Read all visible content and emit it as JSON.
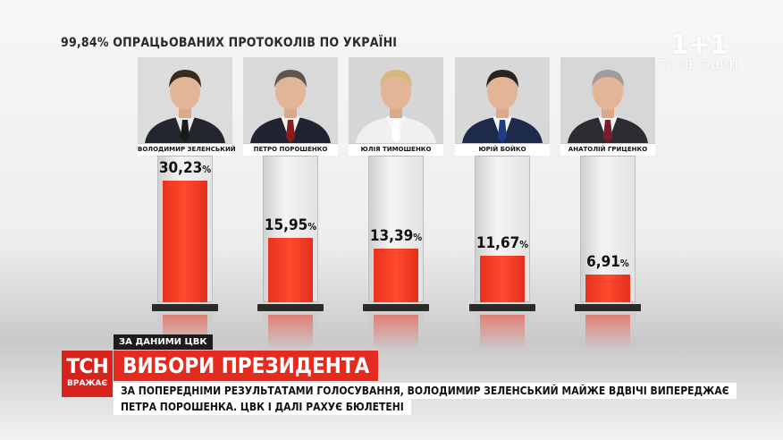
{
  "header": {
    "subtitle": "99,84% ОПРАЦЬОВАНИХ ПРОТОКОЛІВ ПО УКРАЇНІ"
  },
  "watermark": {
    "logo": "1+1",
    "tagline": "ТИ НЕ ОДИН"
  },
  "candidates": [
    {
      "name": "ВОЛОДИМИР ЗЕЛЕНСЬКИЙ",
      "value_label": "30,23",
      "pct": "%",
      "hair": "#3b2a1e",
      "tie": "#1a1a1a",
      "suit": "#23262c",
      "shirt": "#e9e9e9",
      "bg": "#dcdcdc"
    },
    {
      "name": "ПЕТРО ПОРОШЕНКО",
      "value_label": "15,95",
      "pct": "%",
      "hair": "#5c5550",
      "tie": "#8a1c1c",
      "suit": "#1f2430",
      "shirt": "#f2f2f2",
      "bg": "#d9d9d9"
    },
    {
      "name": "ЮЛІЯ ТИМОШЕНКО",
      "value_label": "13,39",
      "pct": "%",
      "hair": "#d9b77a",
      "tie": "#ffffff",
      "suit": "#f0f0f0",
      "shirt": "#f6f6f6",
      "bg": "#d6d6d6"
    },
    {
      "name": "ЮРІЙ БОЙКО",
      "value_label": "11,67",
      "pct": "%",
      "hair": "#2a2420",
      "tie": "#1f3c8a",
      "suit": "#1d2a4a",
      "shirt": "#f2f2f2",
      "bg": "#d8d8d8"
    },
    {
      "name": "АНАТОЛІЙ ГРИЦЕНКО",
      "value_label": "6,91",
      "pct": "%",
      "hair": "#9c9c9c",
      "tie": "#7b1e2b",
      "suit": "#2b2b30",
      "shirt": "#f3f3f3",
      "bg": "#d7d7d7"
    }
  ],
  "chart_data": {
    "type": "bar",
    "title": "",
    "subtitle": "99,84% ОПРАЦЬОВАНИХ ПРОТОКОЛІВ ПО УКРАЇНІ",
    "categories": [
      "ВОЛОДИМИР ЗЕЛЕНСЬКИЙ",
      "ПЕТРО ПОРОШЕНКО",
      "ЮЛІЯ ТИМОШЕНКО",
      "ЮРІЙ БОЙКО",
      "АНАТОЛІЙ ГРИЦЕНКО"
    ],
    "values": [
      30.23,
      15.95,
      13.39,
      11.67,
      6.91
    ],
    "ylim": [
      0,
      33
    ],
    "color": "#f03a22",
    "grid": false,
    "legend": "none"
  },
  "lower_third": {
    "source": "ЗА ДАНИМИ ЦВК",
    "channel": "ТСН",
    "channel_sub": "ВРАЖАЄ",
    "headline": "ВИБОРИ ПРЕЗИДЕНТА",
    "line1": "ЗА ПОПЕРЕДНІМИ РЕЗУЛЬТАТАМИ ГОЛОСУВАННЯ, ВОЛОДИМИР ЗЕЛЕНСЬКИЙ МАЙЖЕ ВДВІЧІ ВИПЕРЕДЖАЄ",
    "line2": "ПЕТРА ПОРОШЕНКА. ЦВК І ДАЛІ РАХУЄ БЮЛЕТЕНІ"
  }
}
